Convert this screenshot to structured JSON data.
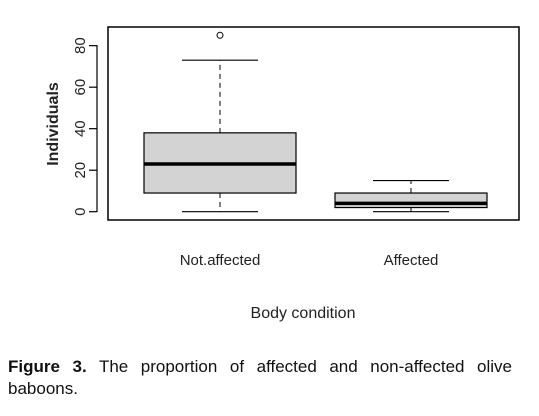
{
  "chart_data": {
    "type": "boxplot",
    "categories": [
      "Not.affected",
      "Affected"
    ],
    "boxes": [
      {
        "category": "Not.affected",
        "min": 0,
        "q1": 9,
        "median": 23,
        "q3": 38,
        "max": 73,
        "outliers": [
          85
        ]
      },
      {
        "category": "Affected",
        "min": 0,
        "q1": 2,
        "median": 4,
        "q3": 9,
        "max": 15,
        "outliers": []
      }
    ],
    "ylabel": "Individuals",
    "xlabel": "Body condition",
    "ylim": [
      -4,
      89
    ],
    "yticks": [
      0,
      20,
      40,
      60,
      80
    ],
    "box_fill": "#d3d3d3"
  },
  "caption": {
    "label": "Figure 3.",
    "text": "The proportion of affected and non-affected olive baboons."
  }
}
